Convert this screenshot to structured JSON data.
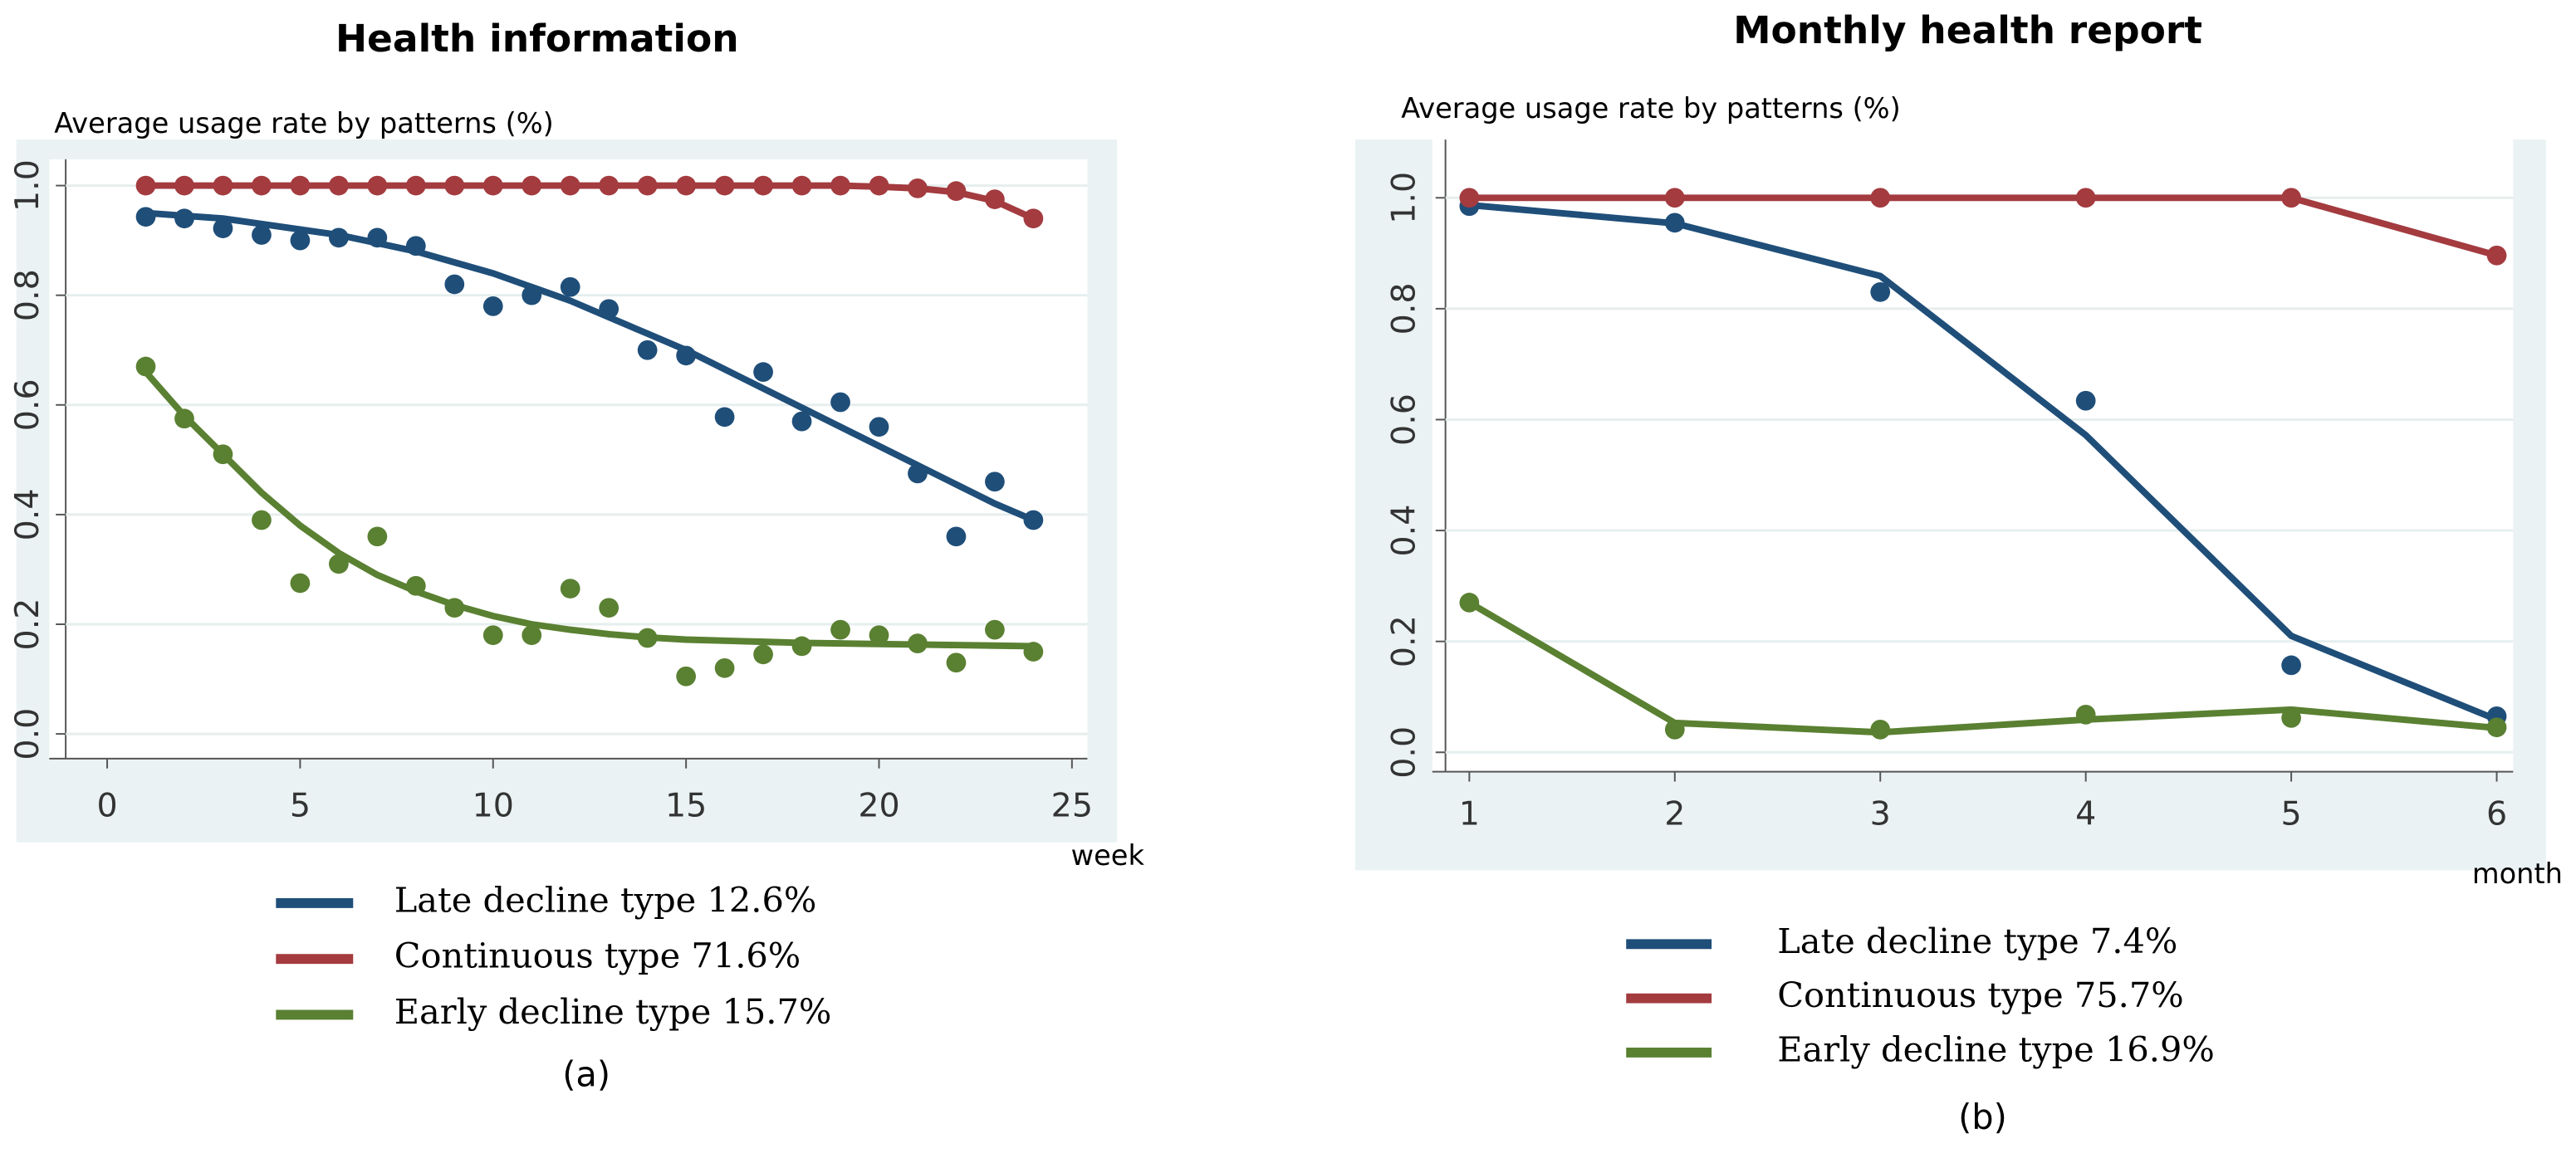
{
  "chart_data": [
    {
      "type": "line",
      "title": "Health information",
      "y_label": "Average usage rate by patterns (%)",
      "x_label": "week",
      "caption": "(a)",
      "x": [
        1,
        2,
        3,
        4,
        5,
        6,
        7,
        8,
        9,
        10,
        11,
        12,
        13,
        14,
        15,
        16,
        17,
        18,
        19,
        20,
        21,
        22,
        23,
        24
      ],
      "xlim": [
        -1.5,
        25.4
      ],
      "xticks": [
        0,
        5,
        10,
        15,
        20,
        25
      ],
      "ylim": [
        -0.045,
        1.048
      ],
      "yticks": [
        {
          "value": 0,
          "label": "0.0"
        },
        {
          "value": 0.2,
          "label": "0.2"
        },
        {
          "value": 0.4,
          "label": "0.4"
        },
        {
          "value": 0.6,
          "label": "0.6"
        },
        {
          "value": 0.8,
          "label": "0.8"
        },
        {
          "value": 1,
          "label": "1.0"
        }
      ],
      "grid": true,
      "series": [
        {
          "name": "Late decline type 12.6%",
          "color": "#1f4e79",
          "values": [
            0.943,
            0.94,
            0.922,
            0.91,
            0.9,
            0.905,
            0.905,
            0.89,
            0.82,
            0.78,
            0.8,
            0.815,
            0.775,
            0.7,
            0.69,
            0.578,
            0.66,
            0.57,
            0.605,
            0.56,
            0.475,
            0.36,
            0.46,
            0.39
          ],
          "fit": [
            0.95,
            0.945,
            0.94,
            0.93,
            0.92,
            0.91,
            0.895,
            0.88,
            0.86,
            0.84,
            0.815,
            0.79,
            0.76,
            0.73,
            0.7,
            0.665,
            0.63,
            0.595,
            0.56,
            0.525,
            0.49,
            0.455,
            0.42,
            0.39
          ]
        },
        {
          "name": "Continuous type 71.6%",
          "color": "#a33b3f",
          "values": [
            1,
            1,
            1,
            1,
            1,
            1,
            1,
            1,
            1,
            1,
            1,
            1,
            1,
            1,
            1,
            1,
            1,
            1,
            1,
            1,
            0.995,
            0.99,
            0.975,
            0.94
          ],
          "fit": [
            1,
            1,
            1,
            1,
            1,
            1,
            1,
            1,
            1,
            1,
            1,
            1,
            1,
            1,
            1,
            1,
            1,
            1,
            1,
            0.998,
            0.995,
            0.988,
            0.972,
            0.94
          ]
        },
        {
          "name": "Early decline type 15.7%",
          "color": "#5a8032",
          "values": [
            0.67,
            0.575,
            0.51,
            0.39,
            0.275,
            0.31,
            0.36,
            0.27,
            0.23,
            0.18,
            0.18,
            0.265,
            0.23,
            0.175,
            0.105,
            0.12,
            0.145,
            0.16,
            0.19,
            0.18,
            0.165,
            0.13,
            0.19,
            0.15
          ],
          "fit": [
            0.66,
            0.58,
            0.51,
            0.44,
            0.38,
            0.33,
            0.29,
            0.26,
            0.235,
            0.215,
            0.2,
            0.19,
            0.182,
            0.176,
            0.172,
            0.17,
            0.168,
            0.166,
            0.165,
            0.164,
            0.163,
            0.162,
            0.161,
            0.16
          ]
        }
      ]
    },
    {
      "type": "line",
      "title": "Monthly health report",
      "y_label": "Average usage rate by patterns (%)",
      "x_label": "month",
      "caption": "(b)",
      "x": [
        1,
        2,
        3,
        4,
        5,
        6
      ],
      "xlim": [
        0.82,
        6.08
      ],
      "xticks": [
        1,
        2,
        3,
        4,
        5,
        6
      ],
      "ylim": [
        -0.035,
        1.105
      ],
      "yticks": [
        {
          "value": 0,
          "label": "0.0"
        },
        {
          "value": 0.2,
          "label": "0.2"
        },
        {
          "value": 0.4,
          "label": "0.4"
        },
        {
          "value": 0.6,
          "label": "0.6"
        },
        {
          "value": 0.8,
          "label": "0.8"
        },
        {
          "value": 1,
          "label": "1.0"
        }
      ],
      "grid": true,
      "series": [
        {
          "name": "Late decline type 7.4%",
          "color": "#1f4e79",
          "values": [
            0.985,
            0.955,
            0.83,
            0.634,
            0.157,
            0.065
          ],
          "fit": [
            0.987,
            0.954,
            0.859,
            0.572,
            0.21,
            0.059
          ]
        },
        {
          "name": "Continuous type 75.7%",
          "color": "#a33b3f",
          "values": [
            1,
            1,
            1,
            1,
            1,
            0.896
          ],
          "fit": [
            1,
            1,
            1,
            1,
            1,
            0.896
          ]
        },
        {
          "name": "Early decline type 16.9%",
          "color": "#5a8032",
          "values": [
            0.27,
            0.041,
            0.041,
            0.068,
            0.062,
            0.045
          ],
          "fit": [
            0.27,
            0.053,
            0.036,
            0.059,
            0.077,
            0.044
          ]
        }
      ]
    }
  ]
}
